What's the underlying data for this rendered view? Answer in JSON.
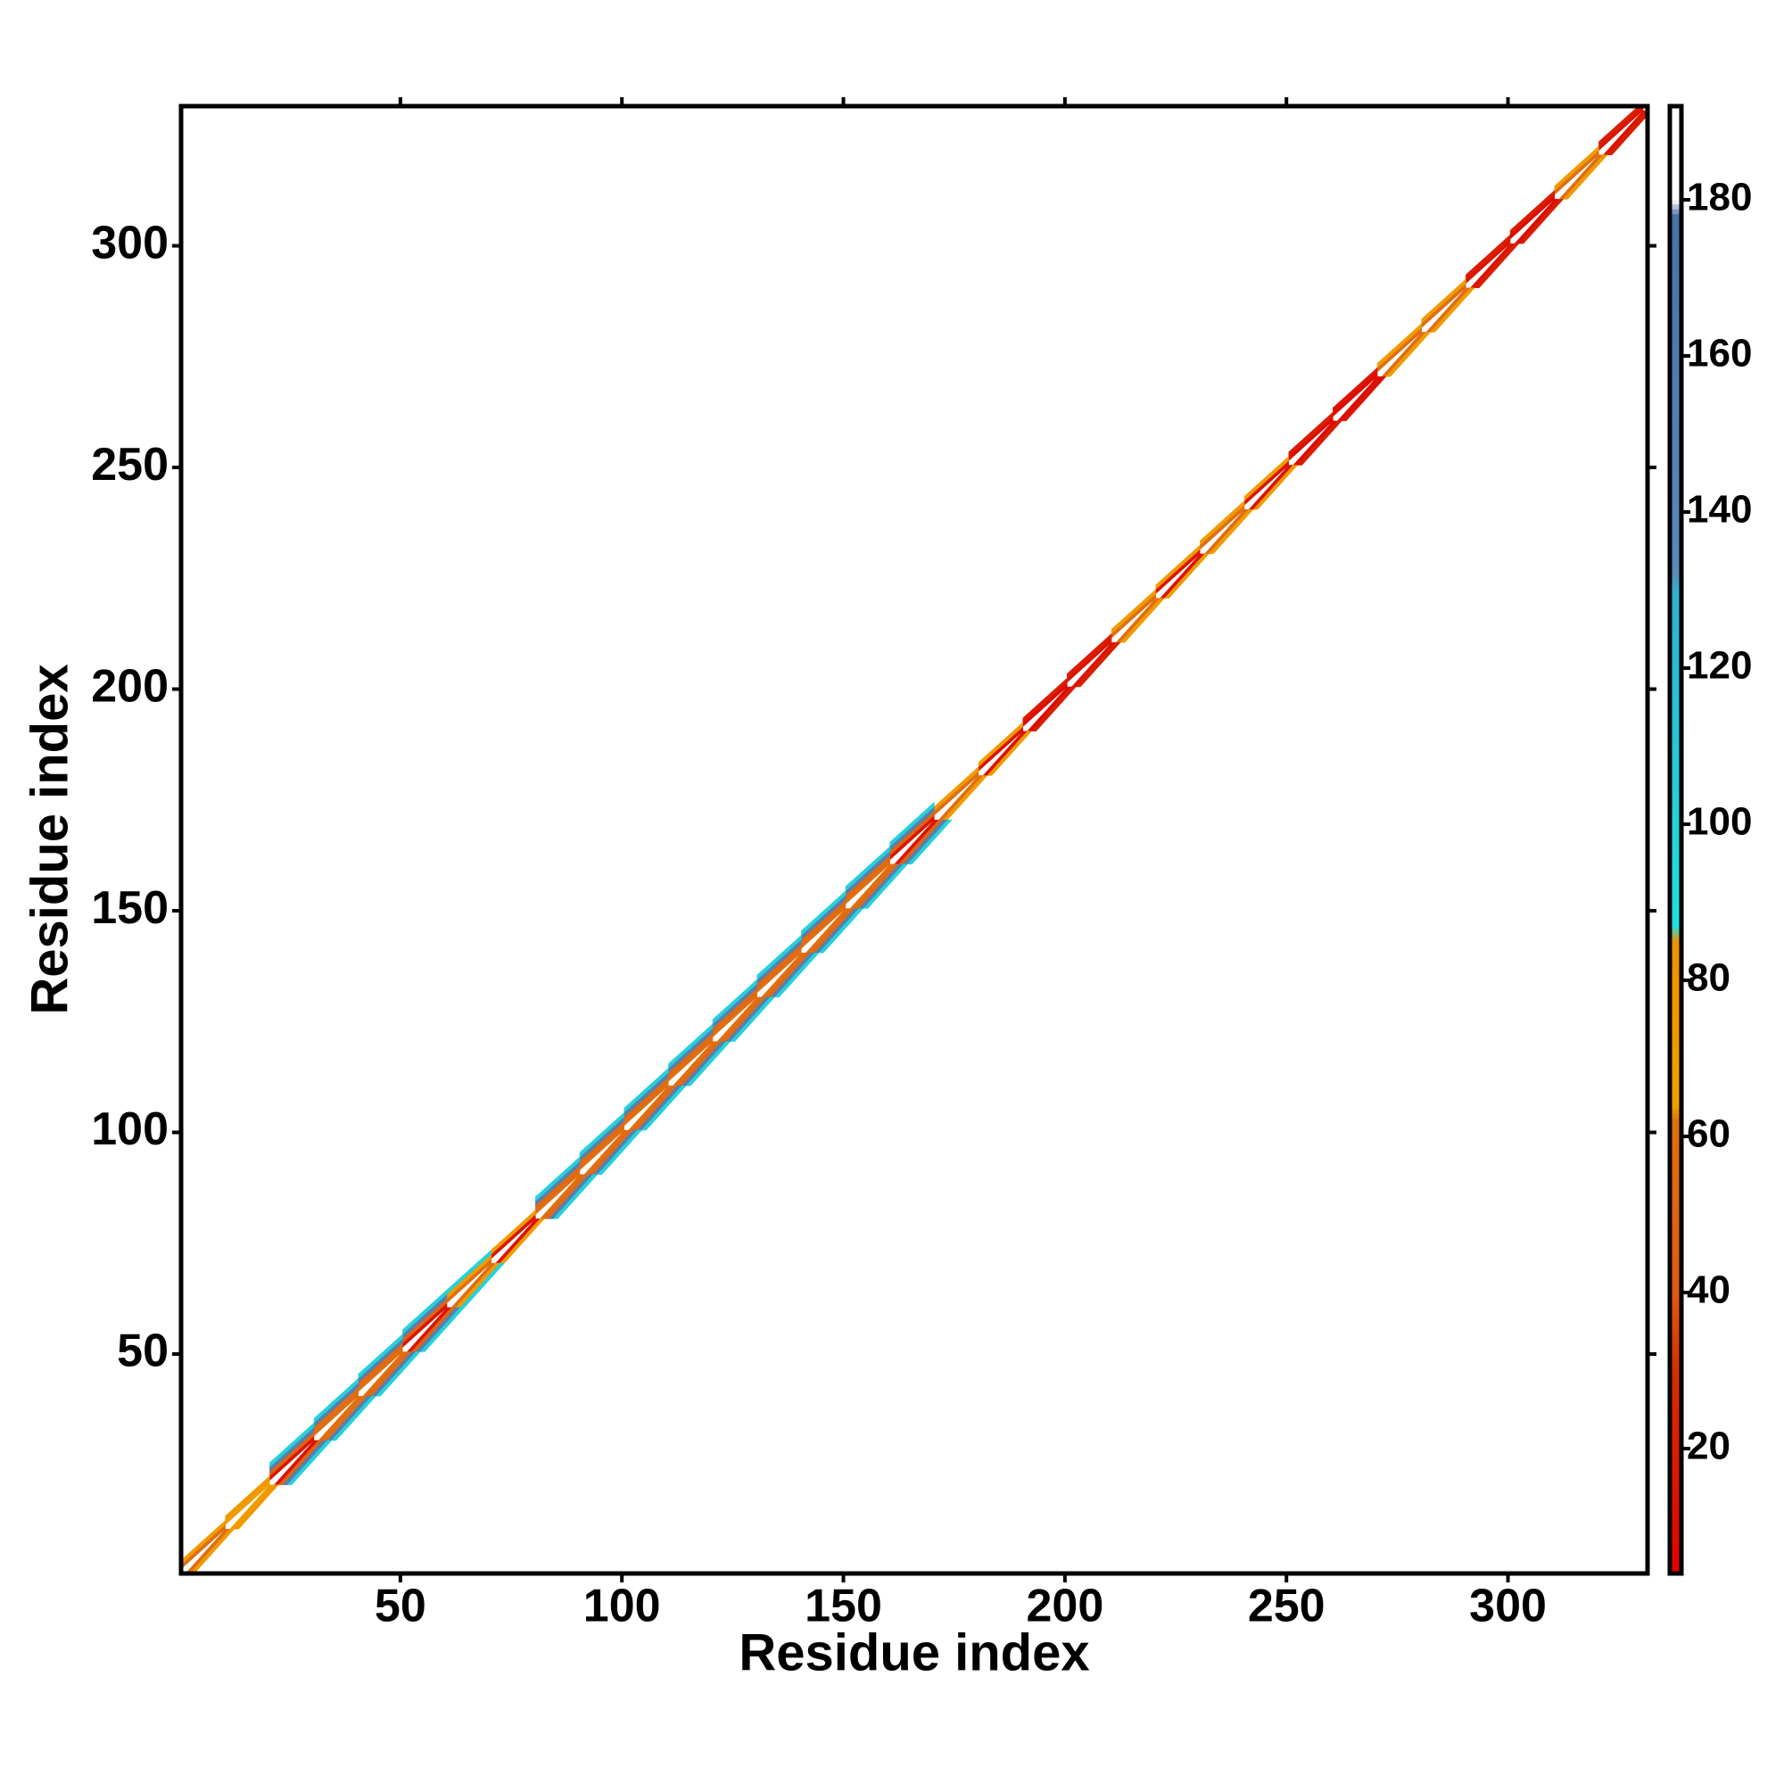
{
  "chart_data": {
    "type": "heatmap",
    "x_label": "Residue index",
    "y_label": "Residue index",
    "xlim": [
      0.5,
      331.5
    ],
    "ylim": [
      0.5,
      331.5
    ],
    "xticks": [
      50,
      100,
      150,
      200,
      250,
      300
    ],
    "yticks": [
      50,
      100,
      150,
      200,
      250,
      300
    ],
    "x": [
      1,
      11,
      21,
      31,
      41,
      51,
      61,
      71,
      81,
      91,
      101,
      111,
      121,
      131,
      141,
      151,
      161,
      171,
      181,
      191,
      201,
      211,
      221,
      231,
      241,
      251,
      261,
      271,
      281,
      291,
      301,
      311,
      321
    ],
    "block_size": 10,
    "offsets": [
      0,
      1,
      2,
      3,
      4
    ],
    "values": [
      [
        188,
        188,
        188,
        188,
        188,
        188,
        188,
        188,
        188,
        188,
        188,
        188,
        188,
        188,
        188,
        188,
        188,
        188,
        188,
        188,
        188,
        188,
        188,
        188,
        188,
        188,
        188,
        188,
        188,
        188,
        188,
        188,
        188
      ],
      [
        60,
        70,
        15,
        60,
        60,
        15,
        60,
        15,
        60,
        60,
        60,
        60,
        60,
        60,
        60,
        60,
        15,
        60,
        15,
        10,
        15,
        60,
        15,
        60,
        15,
        10,
        10,
        60,
        60,
        15,
        10,
        60,
        15
      ],
      [
        70,
        75,
        50,
        60,
        55,
        50,
        70,
        70,
        55,
        55,
        55,
        55,
        55,
        55,
        55,
        55,
        50,
        70,
        70,
        20,
        20,
        70,
        70,
        70,
        70,
        20,
        15,
        70,
        70,
        20,
        20,
        70,
        20
      ],
      [
        null,
        null,
        150,
        150,
        150,
        150,
        100,
        null,
        150,
        150,
        150,
        150,
        150,
        150,
        150,
        150,
        150,
        null,
        null,
        null,
        null,
        null,
        null,
        null,
        null,
        null,
        null,
        null,
        null,
        null,
        null,
        null,
        null
      ],
      [
        null,
        null,
        100,
        100,
        100,
        100,
        null,
        null,
        100,
        100,
        100,
        100,
        100,
        100,
        100,
        100,
        100,
        null,
        null,
        null,
        null,
        null,
        null,
        null,
        null,
        null,
        null,
        null,
        null,
        null,
        null,
        null,
        null
      ]
    ],
    "clim": [
      4,
      192
    ],
    "colorbar_ticks": [
      20,
      40,
      60,
      80,
      100,
      120,
      140,
      160,
      180
    ],
    "colormap": [
      {
        "value": 4,
        "color": "#e00000"
      },
      {
        "value": 30,
        "color": "#d43000"
      },
      {
        "value": 40,
        "color": "#e05a10"
      },
      {
        "value": 62,
        "color": "#e07010"
      },
      {
        "value": 64,
        "color": "#f0a000"
      },
      {
        "value": 85,
        "color": "#f09000"
      },
      {
        "value": 87,
        "color": "#20e0e0"
      },
      {
        "value": 130,
        "color": "#30b0d0"
      },
      {
        "value": 132,
        "color": "#5a8ab8"
      },
      {
        "value": 178,
        "color": "#4a70a8"
      },
      {
        "value": 180,
        "color": "#ffffff"
      },
      {
        "value": 192,
        "color": "#ffffff"
      }
    ]
  }
}
